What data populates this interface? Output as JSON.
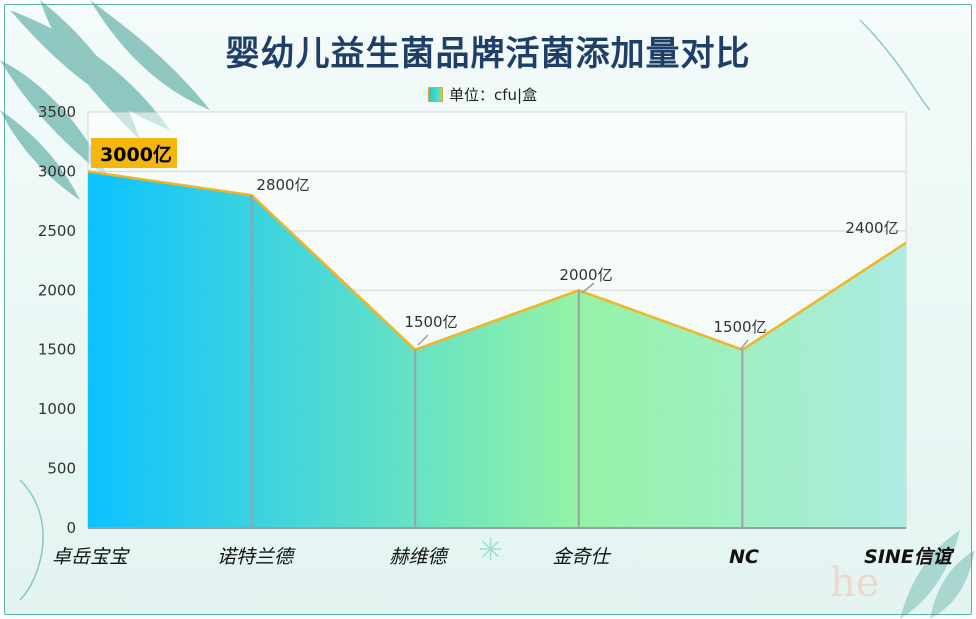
{
  "chart_data": {
    "type": "area",
    "title": "婴幼儿益生菌品牌活菌添加量对比",
    "legend": {
      "label": "单位：cfu|盒",
      "position": "top"
    },
    "categories": [
      "卓岳宝宝",
      "诺特兰德",
      "赫维德",
      "金奇仕",
      "NC",
      "SINE信谊"
    ],
    "series": [
      {
        "values": [
          3000,
          2800,
          1500,
          2000,
          1500,
          2400
        ]
      }
    ],
    "data_labels": [
      "3000亿",
      "2800亿",
      "1500亿",
      "2000亿",
      "1500亿",
      "2400亿"
    ],
    "y_ticks": [
      "0",
      "500",
      "1000",
      "1500",
      "2000",
      "2500",
      "3000",
      "3500"
    ],
    "ylim": [
      0,
      3500
    ],
    "grid": true,
    "line_color": "#f0b429",
    "highlight_color": "#f5b60f",
    "gradient": [
      "#00bfff",
      "#8ff2a1",
      "#a8ebe0"
    ]
  },
  "watermark": "he"
}
